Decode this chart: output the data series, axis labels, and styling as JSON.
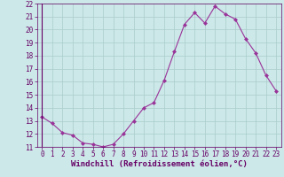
{
  "x": [
    0,
    1,
    2,
    3,
    4,
    5,
    6,
    7,
    8,
    9,
    10,
    11,
    12,
    13,
    14,
    15,
    16,
    17,
    18,
    19,
    20,
    21,
    22,
    23
  ],
  "y": [
    13.3,
    12.8,
    12.1,
    11.9,
    11.3,
    11.2,
    11.0,
    11.2,
    12.0,
    13.0,
    14.0,
    14.4,
    16.1,
    18.3,
    20.4,
    21.3,
    20.5,
    21.8,
    21.2,
    20.8,
    19.3,
    18.2,
    16.5,
    15.3
  ],
  "line_color": "#993399",
  "marker": "D",
  "marker_size": 2.0,
  "bg_color": "#cce8e8",
  "grid_color": "#aacccc",
  "xlabel": "Windchill (Refroidissement éolien,°C)",
  "xlim": [
    -0.5,
    23.5
  ],
  "ylim": [
    11,
    22
  ],
  "yticks": [
    11,
    12,
    13,
    14,
    15,
    16,
    17,
    18,
    19,
    20,
    21,
    22
  ],
  "xticks": [
    0,
    1,
    2,
    3,
    4,
    5,
    6,
    7,
    8,
    9,
    10,
    11,
    12,
    13,
    14,
    15,
    16,
    17,
    18,
    19,
    20,
    21,
    22,
    23
  ],
  "tick_color": "#660066",
  "label_fontsize": 5.5,
  "xlabel_fontsize": 6.5
}
